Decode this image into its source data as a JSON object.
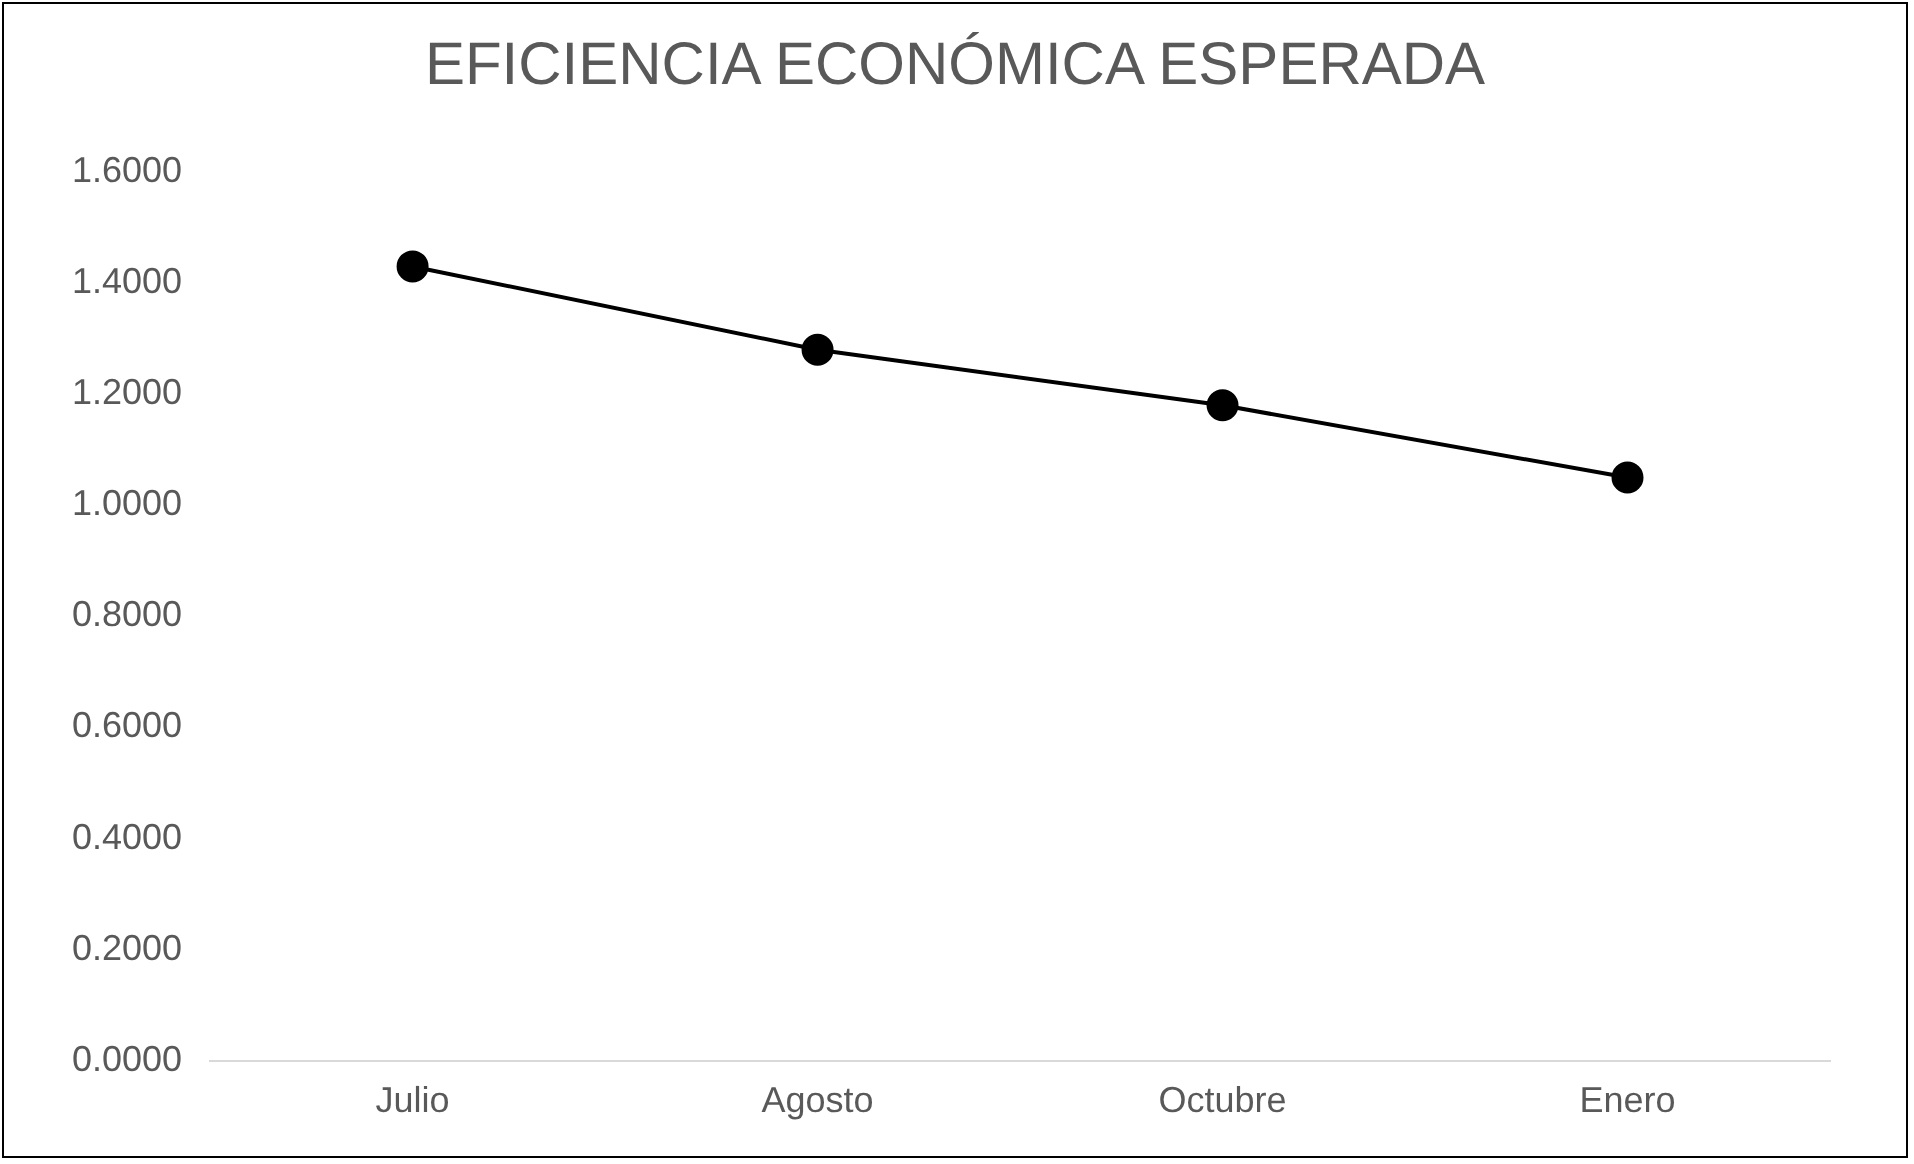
{
  "chart_data": {
    "type": "line",
    "title": "EFICIENCIA ECONÓMICA ESPERADA",
    "categories": [
      "Julio",
      "Agosto",
      "Octubre",
      "Enero"
    ],
    "series": [
      {
        "color": "#000000",
        "values": [
          1.43,
          1.28,
          1.18,
          1.05
        ]
      }
    ],
    "ylim": [
      0,
      1.6
    ],
    "yticks": [
      {
        "value": 0,
        "label": "0.0000"
      },
      {
        "value": 0.2,
        "label": "0.2000"
      },
      {
        "value": 0.4,
        "label": "0.4000"
      },
      {
        "value": 0.6,
        "label": "0.6000"
      },
      {
        "value": 0.8,
        "label": "0.8000"
      },
      {
        "value": 1.0,
        "label": "1.0000"
      },
      {
        "value": 1.2,
        "label": "1.2000"
      },
      {
        "value": 1.4,
        "label": "1.4000"
      },
      {
        "value": 1.6,
        "label": "1.6000"
      }
    ],
    "grid": false,
    "legend": false,
    "marker": "circle",
    "line_style": "solid"
  }
}
